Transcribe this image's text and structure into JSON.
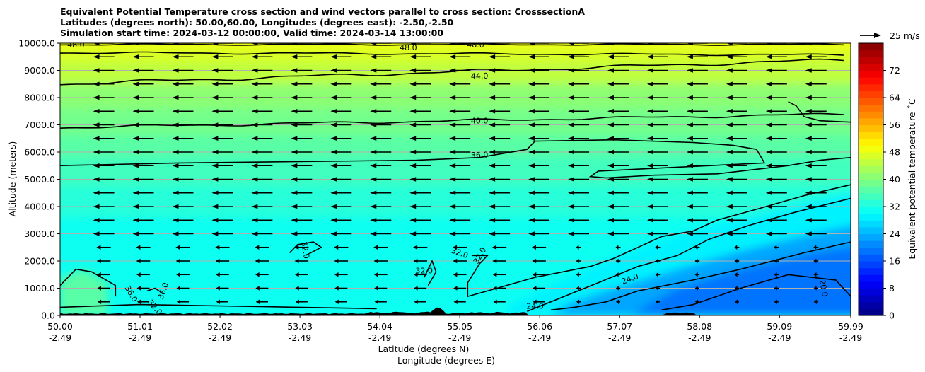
{
  "title_lines": [
    "Equivalent Potential Temperature cross section and wind vectors parallel to cross section: CrosssectionA",
    "Latitudes (degrees north): 50.00,60.00, Longitudes (degrees east): -2.50,-2.50",
    "Simulation start time: 2024-03-12 00:00:00, Valid time: 2024-03-14 13:00:00"
  ],
  "chart_data": {
    "type": "heatmap",
    "title": "Equivalent Potential Temperature cross section and wind vectors parallel to cross section: CrosssectionA",
    "xlabel": "Latitude (degrees N)",
    "xlabel2": "Longitude (degrees E)",
    "ylabel": "Altitude (meters)",
    "xlim": [
      50.0,
      59.99
    ],
    "ylim": [
      0,
      10000
    ],
    "x_ticks": [
      {
        "lat": "50.00",
        "lon": "-2.49",
        "value": 50.0
      },
      {
        "lat": "51.01",
        "lon": "-2.49",
        "value": 51.01
      },
      {
        "lat": "52.02",
        "lon": "-2.49",
        "value": 52.02
      },
      {
        "lat": "53.03",
        "lon": "-2.49",
        "value": 53.03
      },
      {
        "lat": "54.04",
        "lon": "-2.49",
        "value": 54.04
      },
      {
        "lat": "55.05",
        "lon": "-2.49",
        "value": 55.05
      },
      {
        "lat": "56.06",
        "lon": "-2.49",
        "value": 56.06
      },
      {
        "lat": "57.07",
        "lon": "-2.49",
        "value": 57.07
      },
      {
        "lat": "58.08",
        "lon": "-2.49",
        "value": 58.08
      },
      {
        "lat": "59.09",
        "lon": "-2.49",
        "value": 59.09
      },
      {
        "lat": "59.99",
        "lon": "-2.49",
        "value": 59.99
      }
    ],
    "y_ticks": [
      "0.0",
      "1000.0",
      "2000.0",
      "3000.0",
      "4000.0",
      "5000.0",
      "6000.0",
      "7000.0",
      "8000.0",
      "9000.0",
      "10000.0"
    ],
    "grid_y": true,
    "colorbar": {
      "label": "Equivalent potential temperature ˚C",
      "min": 0,
      "max": 80,
      "ticks": [
        "0",
        "8",
        "16",
        "24",
        "32",
        "40",
        "48",
        "56",
        "64",
        "72"
      ],
      "levels_step": 2,
      "cmap": "jet"
    },
    "contours": [
      {
        "level": 24,
        "label": "24.0"
      },
      {
        "level": 28,
        "label": "28.0"
      },
      {
        "level": 32,
        "label": "32.0"
      },
      {
        "level": 36,
        "label": "36.0"
      },
      {
        "level": 40,
        "label": "40.0"
      },
      {
        "level": 44,
        "label": "44.0"
      },
      {
        "level": 48,
        "label": "48.0"
      }
    ],
    "wind": {
      "reference_label": "25 m/s",
      "reference_speed": 25,
      "typical_speed_aloft": 25,
      "direction": "southward (toward lower latitude)"
    },
    "terrain": "black silhouette along the bottom"
  }
}
